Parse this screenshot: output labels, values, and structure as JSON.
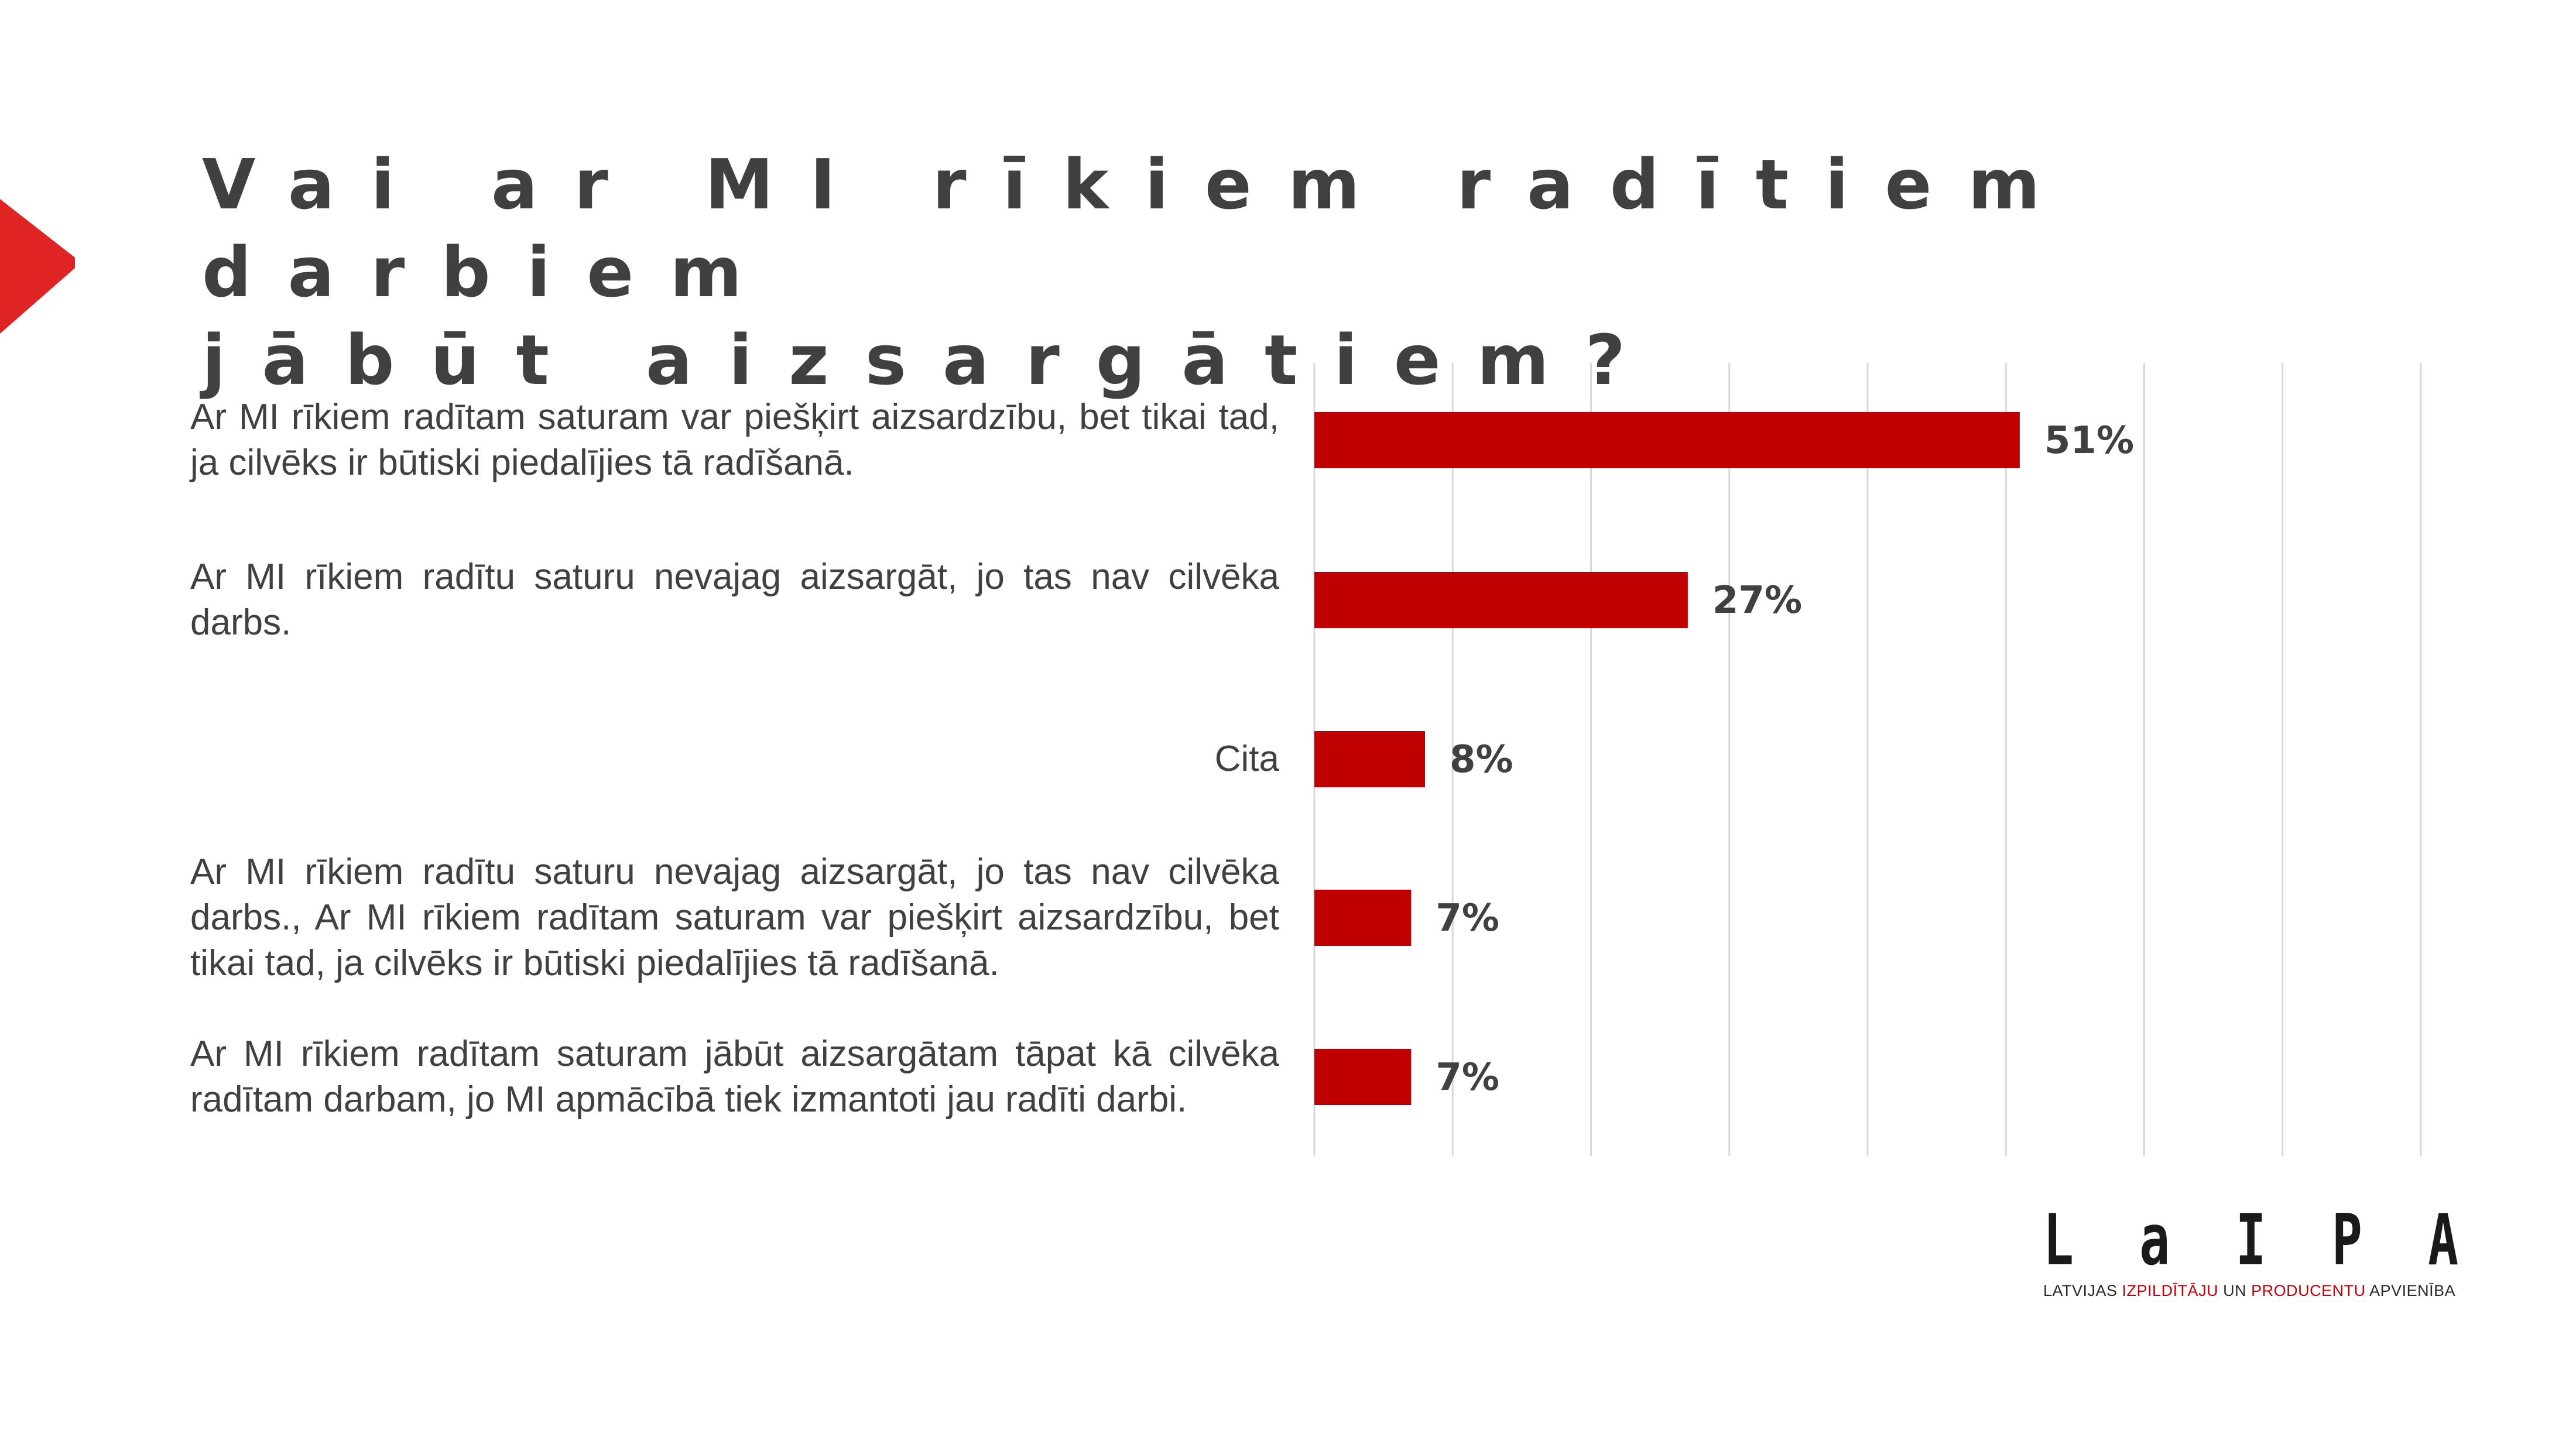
{
  "title": "Vai ar MI rīkiem radītiem darbiem\njābūt aizsargātiem?",
  "colors": {
    "accent": "#e02424",
    "bar": "#c00000",
    "text": "#404040",
    "grid": "#d9d9d9"
  },
  "chart_data": {
    "type": "bar",
    "orientation": "horizontal",
    "categories": [
      "Ar MI rīkiem radītam saturam var piešķirt aizsardzību, bet tikai tad, ja cilvēks ir būtiski piedalījies tā radīšanā.",
      "Ar MI rīkiem radītu saturu nevajag aizsargāt, jo tas nav cilvēka darbs.",
      "Cita",
      "Ar MI rīkiem radītu saturu nevajag aizsargāt, jo tas nav cilvēka darbs., Ar MI rīkiem radītam saturam var piešķirt aizsardzību, bet tikai tad, ja cilvēks ir būtiski piedalījies tā radīšanā.",
      "Ar MI rīkiem radītam saturam jābūt aizsargātam tāpat kā cilvēka radītam darbam, jo MI apmācībā tiek izmantoti jau radīti darbi."
    ],
    "values": [
      51,
      27,
      8,
      7,
      7
    ],
    "value_labels": [
      "51%",
      "27%",
      "8%",
      "7%",
      "7%"
    ],
    "unit": "%",
    "xlim": [
      0,
      80
    ],
    "grid": true,
    "legend": "none"
  },
  "logo": {
    "letters": [
      "L",
      "a",
      "I",
      "P",
      "A"
    ],
    "tagline_parts": [
      {
        "text": "LATVIJAS ",
        "accent": false
      },
      {
        "text": "IZPILDĪTĀJU",
        "accent": true
      },
      {
        "text": " UN ",
        "accent": false
      },
      {
        "text": "PRODUCENTU",
        "accent": true
      },
      {
        "text": " APVIENĪBA",
        "accent": false
      }
    ]
  }
}
